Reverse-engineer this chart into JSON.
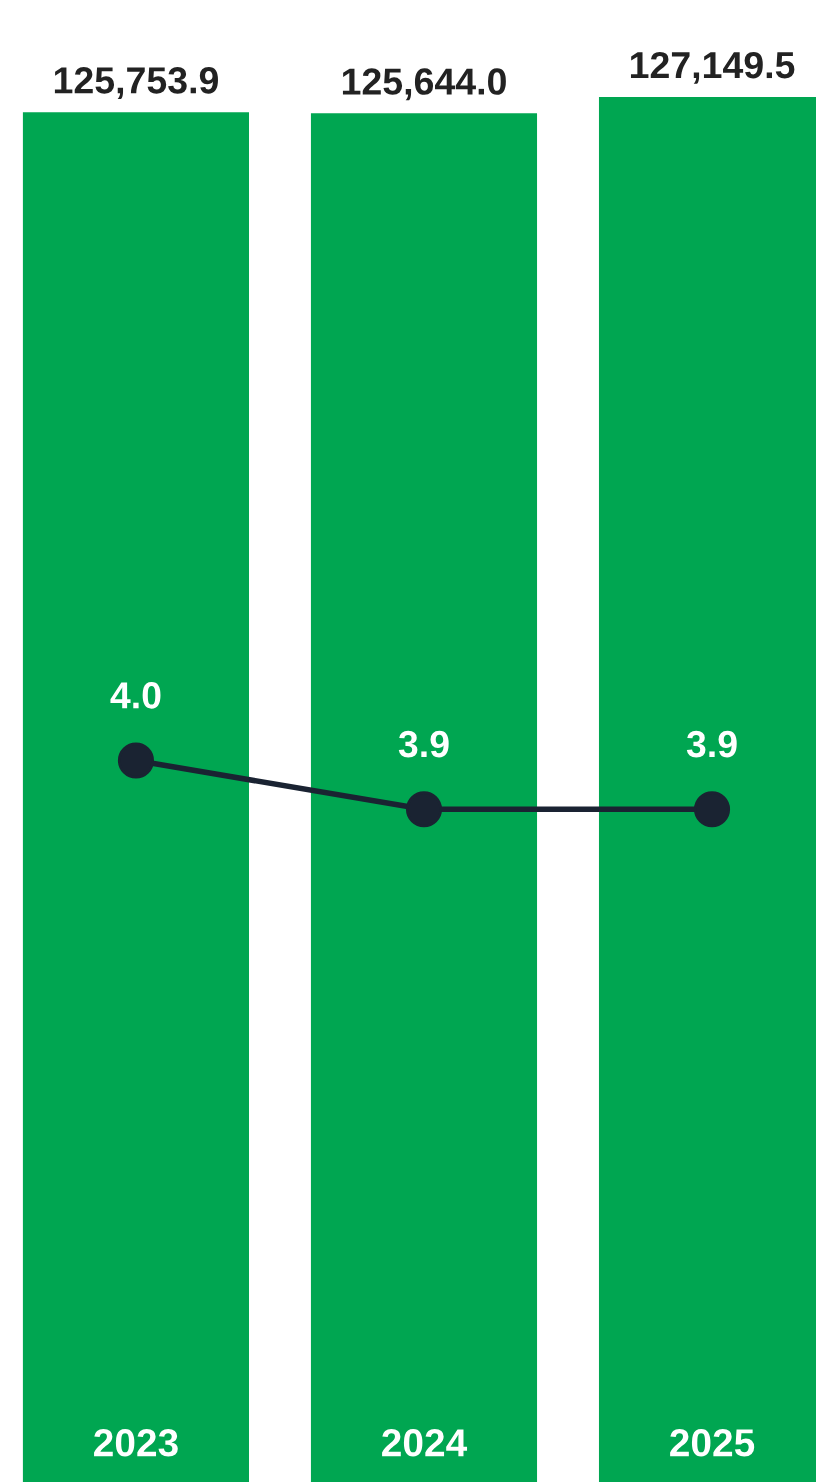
{
  "chart_data": {
    "type": "bar",
    "categories": [
      "2023",
      "2024",
      "2025"
    ],
    "series": [
      {
        "color": "#00a651",
        "values": [
          125753.9,
          125644.0,
          127149.5
        ],
        "value_labels": [
          "125,753.9",
          "125,644.0",
          "127,149.5"
        ]
      },
      {
        "type": "line",
        "axis": "y2",
        "color": "#1a2332",
        "marker": "circle",
        "values": [
          4.0,
          3.9,
          3.9
        ],
        "value_labels": [
          "4.0",
          "3.9",
          "3.9"
        ]
      }
    ],
    "legend": false
  }
}
